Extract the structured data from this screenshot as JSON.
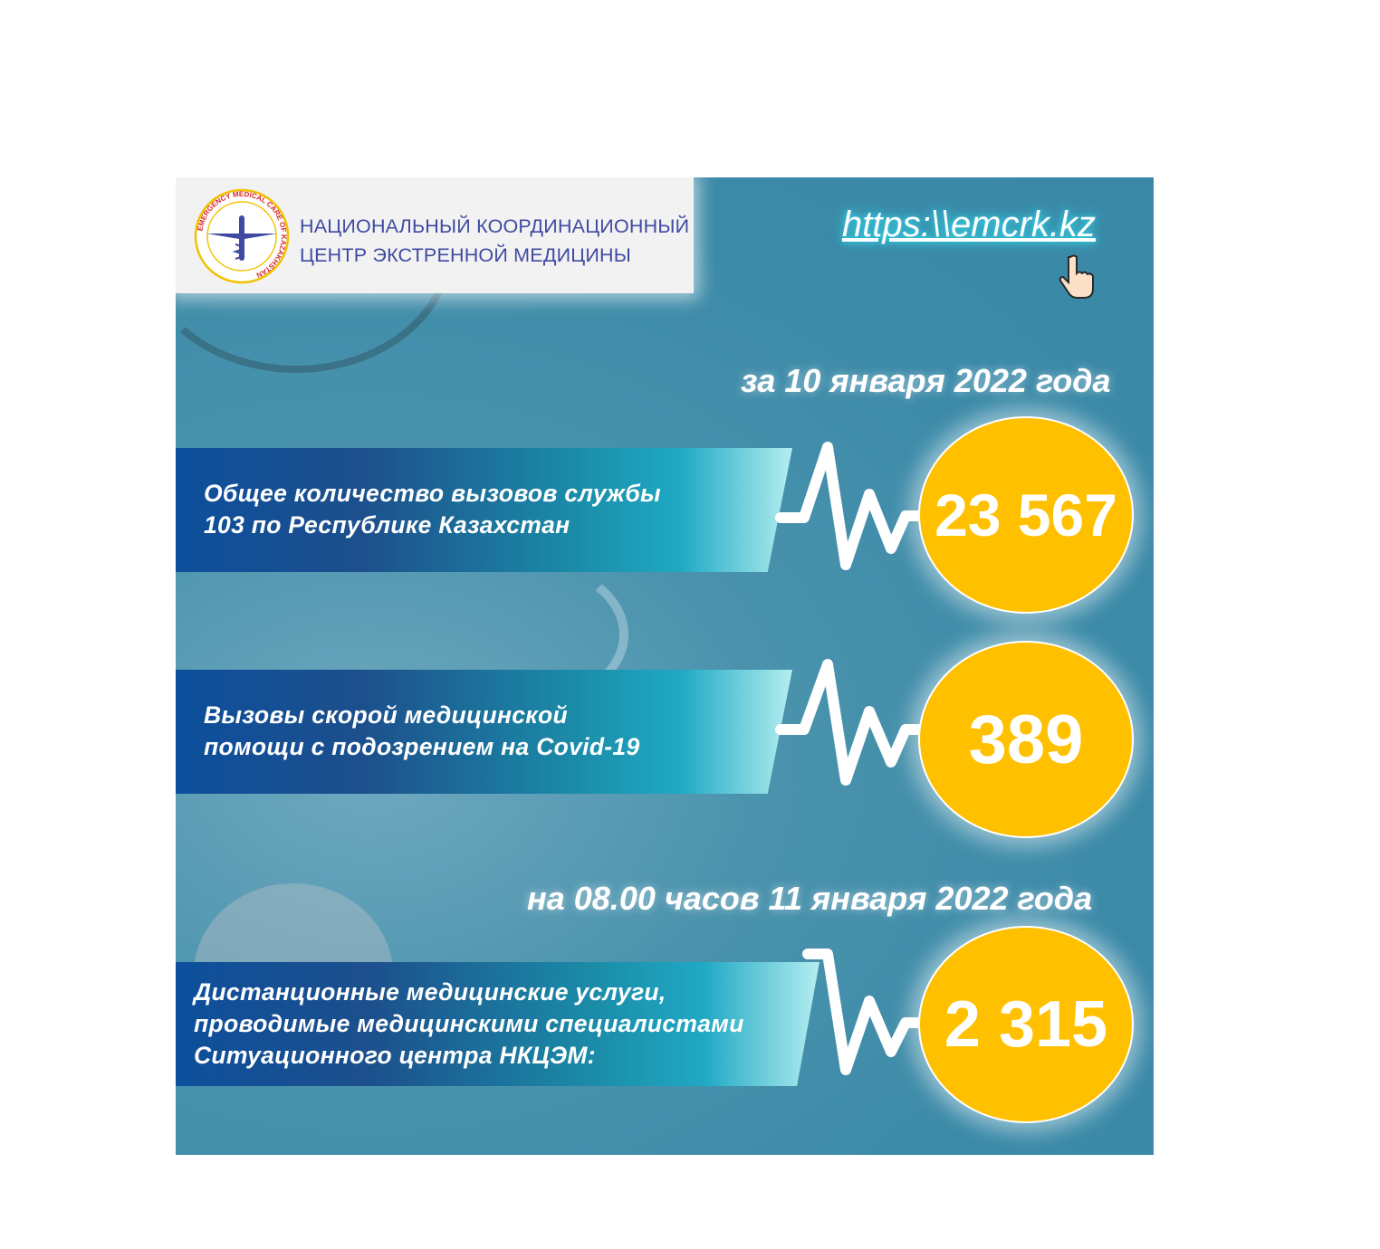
{
  "header": {
    "logo": {
      "ring_text": "EMERGENCY MEDICAL CARE OF KAZAKHSTAN"
    },
    "org_line1": "НАЦИОНАЛЬНЫЙ КООРДИНАЦИОННЫЙ",
    "org_line2": "ЦЕНТР ЭКСТРЕННОЙ МЕДИЦИНЫ"
  },
  "website": {
    "url": "https:\\\\emcrk.kz",
    "icon": "pointing-hand-icon"
  },
  "date1": "за 10 января 2022 года",
  "date2": "на 08.00 часов 11 января 2022 года",
  "stats": [
    {
      "line1": "Общее количество вызовов службы",
      "line2": "103 по Республике Казахстан",
      "value": "23 567"
    },
    {
      "line1": "Вызовы скорой медицинской",
      "line2": "помощи с подозрением на Covid-19",
      "value": "389"
    },
    {
      "line1": "Дистанционные медицинские услуги,",
      "line2": "проводимые медицинскими специалистами",
      "line3": "Ситуационного центра НКЦЭМ:",
      "value": "2 315"
    }
  ],
  "colors": {
    "background": "#3a88a6",
    "circle": "#ffc000",
    "band_start": "#0d4f9c",
    "band_end": "#b4eef0",
    "org_text": "#3f4aa0"
  }
}
